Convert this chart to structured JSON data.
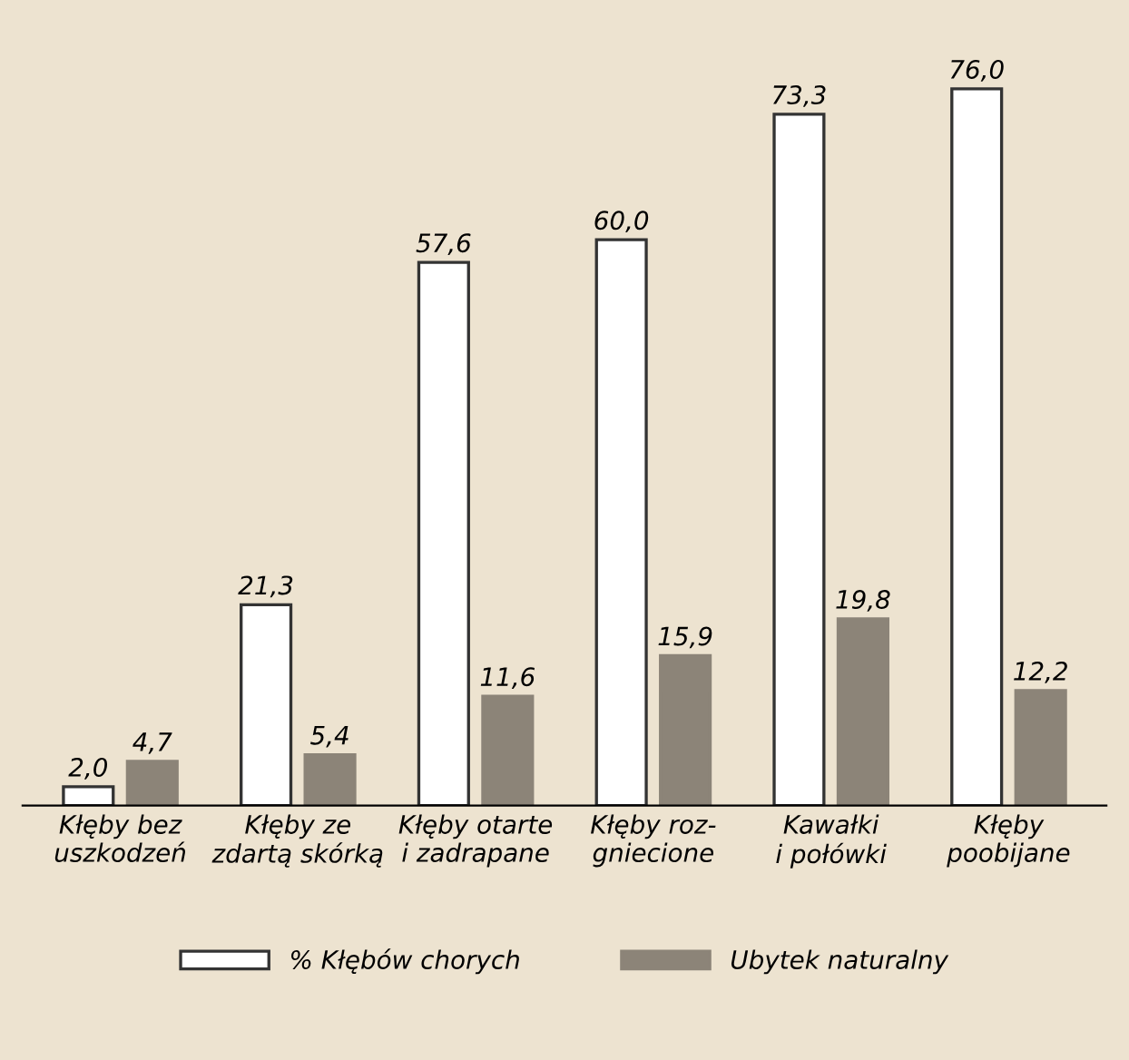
{
  "chart_data": {
    "type": "bar",
    "categories": [
      "Kłęby bez\nuszkodzeń",
      "Kłęby ze\nzdartą skórką",
      "Kłęby otarte\ni zadrapane",
      "Kłęby roz-\ngniecione",
      "Kawałki\ni połówki",
      "Kłęby\npoobijane"
    ],
    "series": [
      {
        "name": "% Kłębów chorych",
        "color": "#ffffff",
        "values": [
          2.0,
          21.3,
          57.6,
          60.0,
          73.3,
          76.0
        ],
        "value_labels": [
          "2,0",
          "21,3",
          "57,6",
          "60,0",
          "73,3",
          "76,0"
        ]
      },
      {
        "name": "Ubytek naturalny",
        "color": "#8c8478",
        "values": [
          4.7,
          5.4,
          11.6,
          15.9,
          19.8,
          12.2
        ],
        "value_labels": [
          "4,7",
          "5,4",
          "11,6",
          "15,9",
          "19,8",
          "12,2"
        ]
      }
    ],
    "legend": "bottom",
    "grid": false,
    "tick_labels": "x"
  }
}
